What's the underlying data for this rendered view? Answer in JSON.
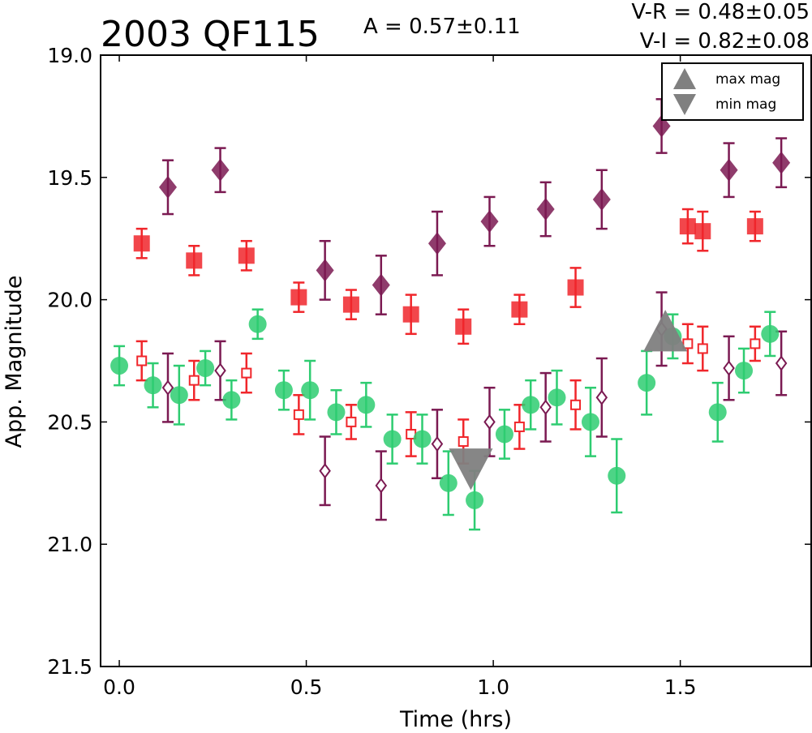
{
  "chart_data": {
    "type": "scatter",
    "title": "2003 QF115",
    "amplitude_label": "A  = 0.57±0.11",
    "color_label_vr": "V-R = 0.48±0.05",
    "color_label_vi": "V-I  = 0.82±0.08",
    "xlabel": "Time (hrs)",
    "ylabel": "App. Magnitude",
    "xlim": [
      -0.05,
      1.85
    ],
    "ylim": [
      21.5,
      19.0
    ],
    "y_inverted": true,
    "xticks": [
      "0.0",
      "0.5",
      "1.0",
      "1.5"
    ],
    "xtick_values": [
      0.0,
      0.5,
      1.0,
      1.5
    ],
    "yticks": [
      "19.0",
      "19.5",
      "20.0",
      "20.5",
      "21.0",
      "21.5"
    ],
    "ytick_values": [
      19.0,
      19.5,
      20.0,
      20.5,
      21.0,
      21.5
    ],
    "grid": false,
    "legend": {
      "placement": "top-right",
      "entries": [
        {
          "label": "max mag",
          "marker": "triangle-up"
        },
        {
          "label": "min mag",
          "marker": "triangle-down"
        }
      ]
    },
    "colors": {
      "v_band": "#2ecc71",
      "r_band": "#f0262b",
      "i_band": "#7b1a52",
      "marker_gray": "#808080"
    },
    "series": [
      {
        "band": "green-filled-circles",
        "marker": "circle",
        "filled": true,
        "color": "#2ecc71",
        "points": [
          {
            "x": 0.0,
            "y": 20.27,
            "err": 0.08
          },
          {
            "x": 0.09,
            "y": 20.35,
            "err": 0.09
          },
          {
            "x": 0.16,
            "y": 20.39,
            "err": 0.12
          },
          {
            "x": 0.23,
            "y": 20.28,
            "err": 0.07
          },
          {
            "x": 0.3,
            "y": 20.41,
            "err": 0.08
          },
          {
            "x": 0.37,
            "y": 20.1,
            "err": 0.06
          },
          {
            "x": 0.44,
            "y": 20.37,
            "err": 0.08
          },
          {
            "x": 0.51,
            "y": 20.37,
            "err": 0.12
          },
          {
            "x": 0.58,
            "y": 20.46,
            "err": 0.09
          },
          {
            "x": 0.66,
            "y": 20.43,
            "err": 0.09
          },
          {
            "x": 0.73,
            "y": 20.57,
            "err": 0.1
          },
          {
            "x": 0.81,
            "y": 20.57,
            "err": 0.1
          },
          {
            "x": 0.88,
            "y": 20.75,
            "err": 0.13
          },
          {
            "x": 0.95,
            "y": 20.82,
            "err": 0.12
          },
          {
            "x": 1.03,
            "y": 20.55,
            "err": 0.1
          },
          {
            "x": 1.1,
            "y": 20.43,
            "err": 0.1
          },
          {
            "x": 1.17,
            "y": 20.4,
            "err": 0.11
          },
          {
            "x": 1.26,
            "y": 20.5,
            "err": 0.14
          },
          {
            "x": 1.33,
            "y": 20.72,
            "err": 0.15
          },
          {
            "x": 1.41,
            "y": 20.34,
            "err": 0.13
          },
          {
            "x": 1.48,
            "y": 20.15,
            "err": 0.09
          },
          {
            "x": 1.6,
            "y": 20.46,
            "err": 0.12
          },
          {
            "x": 1.67,
            "y": 20.29,
            "err": 0.09
          },
          {
            "x": 1.74,
            "y": 20.14,
            "err": 0.09
          }
        ]
      },
      {
        "band": "red-filled-squares",
        "marker": "square",
        "filled": true,
        "color": "#f0262b",
        "points": [
          {
            "x": 0.06,
            "y": 19.77,
            "err": 0.06
          },
          {
            "x": 0.2,
            "y": 19.84,
            "err": 0.06
          },
          {
            "x": 0.34,
            "y": 19.82,
            "err": 0.06
          },
          {
            "x": 0.48,
            "y": 19.99,
            "err": 0.06
          },
          {
            "x": 0.62,
            "y": 20.02,
            "err": 0.06
          },
          {
            "x": 0.78,
            "y": 20.06,
            "err": 0.08
          },
          {
            "x": 0.92,
            "y": 20.11,
            "err": 0.07
          },
          {
            "x": 1.07,
            "y": 20.04,
            "err": 0.06
          },
          {
            "x": 1.22,
            "y": 19.95,
            "err": 0.08
          },
          {
            "x": 1.52,
            "y": 19.7,
            "err": 0.07
          },
          {
            "x": 1.56,
            "y": 19.72,
            "err": 0.08
          },
          {
            "x": 1.7,
            "y": 19.7,
            "err": 0.06
          }
        ]
      },
      {
        "band": "red-open-squares",
        "marker": "square",
        "filled": false,
        "color": "#f0262b",
        "points": [
          {
            "x": 0.06,
            "y": 20.25,
            "err": 0.08
          },
          {
            "x": 0.2,
            "y": 20.33,
            "err": 0.08
          },
          {
            "x": 0.34,
            "y": 20.3,
            "err": 0.08
          },
          {
            "x": 0.48,
            "y": 20.47,
            "err": 0.08
          },
          {
            "x": 0.62,
            "y": 20.5,
            "err": 0.07
          },
          {
            "x": 0.78,
            "y": 20.55,
            "err": 0.09
          },
          {
            "x": 0.92,
            "y": 20.58,
            "err": 0.09
          },
          {
            "x": 1.07,
            "y": 20.52,
            "err": 0.09
          },
          {
            "x": 1.22,
            "y": 20.43,
            "err": 0.1
          },
          {
            "x": 1.52,
            "y": 20.18,
            "err": 0.08
          },
          {
            "x": 1.56,
            "y": 20.2,
            "err": 0.09
          },
          {
            "x": 1.7,
            "y": 20.18,
            "err": 0.07
          }
        ]
      },
      {
        "band": "purple-filled-diamonds",
        "marker": "diamond",
        "filled": true,
        "color": "#7b1a52",
        "points": [
          {
            "x": 0.13,
            "y": 19.54,
            "err": 0.11
          },
          {
            "x": 0.27,
            "y": 19.47,
            "err": 0.09
          },
          {
            "x": 0.55,
            "y": 19.88,
            "err": 0.12
          },
          {
            "x": 0.7,
            "y": 19.94,
            "err": 0.12
          },
          {
            "x": 0.85,
            "y": 19.77,
            "err": 0.13
          },
          {
            "x": 0.99,
            "y": 19.68,
            "err": 0.1
          },
          {
            "x": 1.14,
            "y": 19.63,
            "err": 0.11
          },
          {
            "x": 1.29,
            "y": 19.59,
            "err": 0.12
          },
          {
            "x": 1.45,
            "y": 19.29,
            "err": 0.11
          },
          {
            "x": 1.63,
            "y": 19.47,
            "err": 0.11
          },
          {
            "x": 1.77,
            "y": 19.44,
            "err": 0.1
          }
        ]
      },
      {
        "band": "purple-open-diamonds",
        "marker": "diamond",
        "filled": false,
        "color": "#7b1a52",
        "points": [
          {
            "x": 0.13,
            "y": 20.36,
            "err": 0.14
          },
          {
            "x": 0.27,
            "y": 20.29,
            "err": 0.12
          },
          {
            "x": 0.55,
            "y": 20.7,
            "err": 0.14
          },
          {
            "x": 0.7,
            "y": 20.76,
            "err": 0.14
          },
          {
            "x": 0.85,
            "y": 20.59,
            "err": 0.14
          },
          {
            "x": 0.99,
            "y": 20.5,
            "err": 0.14
          },
          {
            "x": 1.14,
            "y": 20.44,
            "err": 0.14
          },
          {
            "x": 1.29,
            "y": 20.4,
            "err": 0.16
          },
          {
            "x": 1.45,
            "y": 20.12,
            "err": 0.15
          },
          {
            "x": 1.63,
            "y": 20.28,
            "err": 0.13
          },
          {
            "x": 1.77,
            "y": 20.26,
            "err": 0.13
          }
        ]
      }
    ],
    "extrema_markers": [
      {
        "kind": "max-mag",
        "marker": "triangle-up",
        "x": 1.46,
        "y": 20.14
      },
      {
        "kind": "min-mag",
        "marker": "triangle-down",
        "x": 0.94,
        "y": 20.68
      }
    ]
  }
}
